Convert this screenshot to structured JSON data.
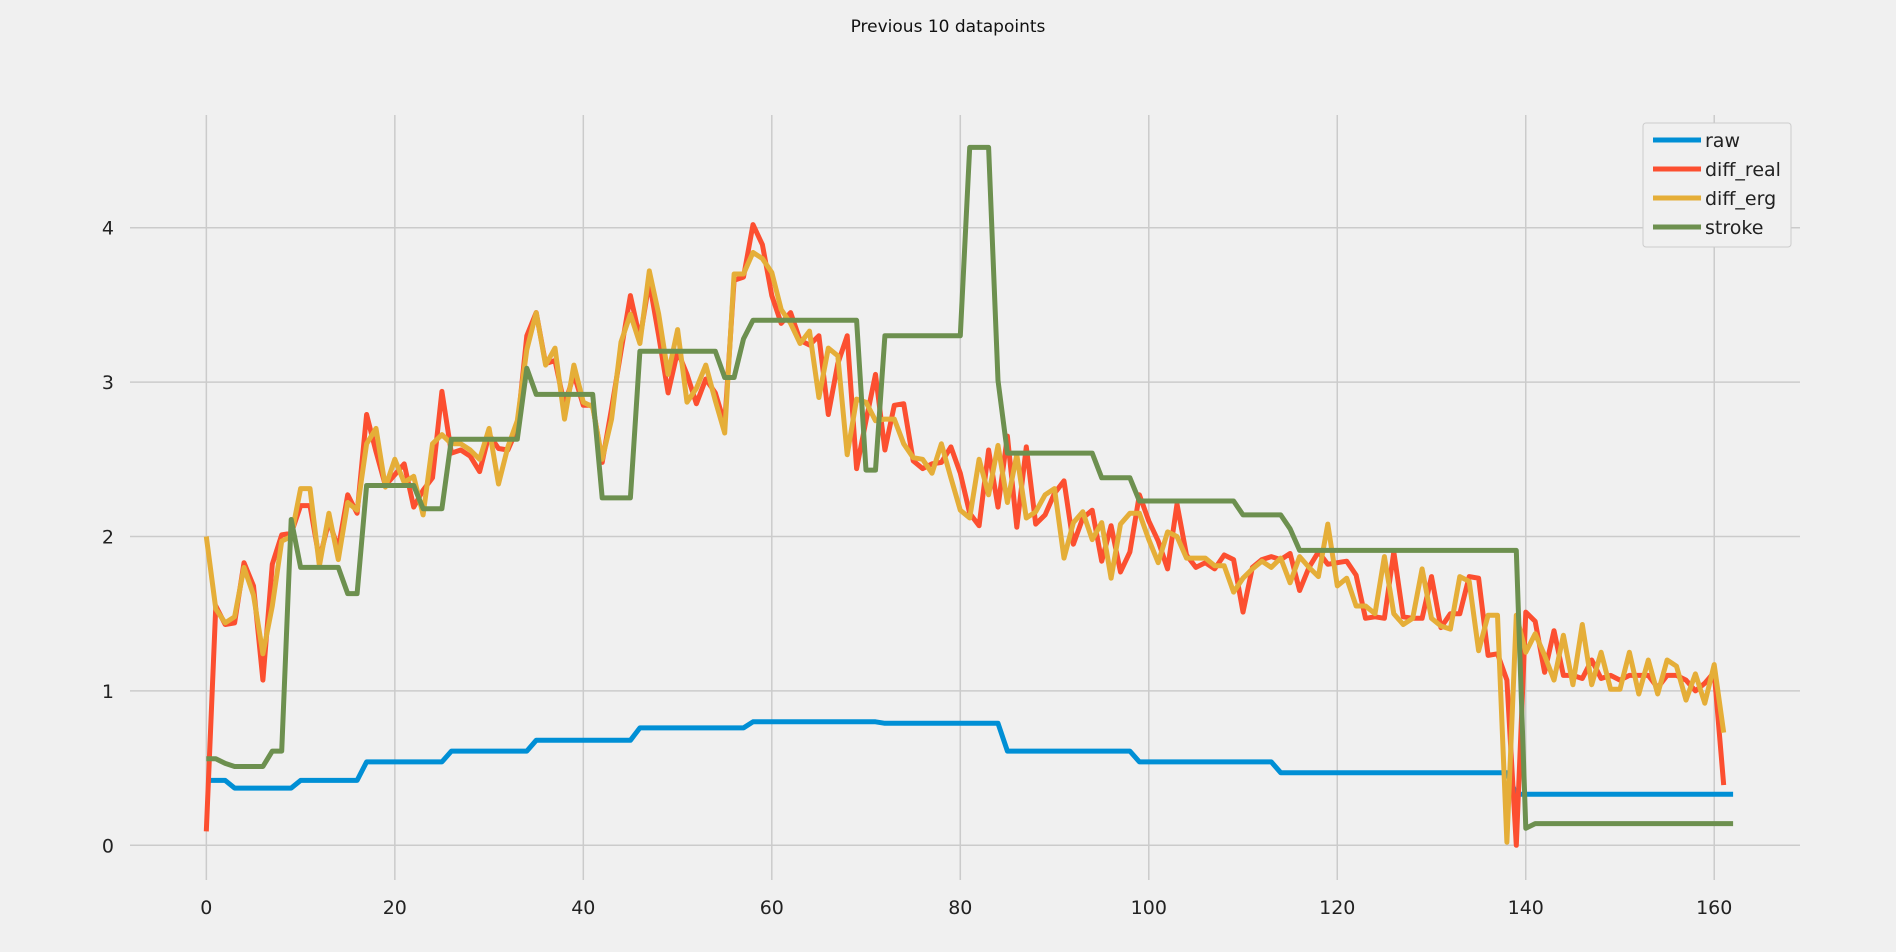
{
  "chart_data": {
    "type": "line",
    "title": "Previous 10 datapoints",
    "xlabel": "",
    "ylabel": "",
    "xlim": [
      -8.1,
      169.1
    ],
    "ylim": [
      -0.225,
      4.73
    ],
    "xticks": [
      0,
      20,
      40,
      60,
      80,
      100,
      120,
      140,
      160
    ],
    "yticks": [
      0,
      1,
      2,
      3,
      4
    ],
    "grid": true,
    "legend_position": "top-right",
    "series": [
      {
        "name": "raw",
        "color": "#008fd5",
        "y": [
          0.42,
          0.42,
          0.42,
          0.37,
          0.37,
          0.37,
          0.37,
          0.37,
          0.37,
          0.37,
          0.42,
          0.42,
          0.42,
          0.42,
          0.42,
          0.42,
          0.42,
          0.54,
          0.54,
          0.54,
          0.54,
          0.54,
          0.54,
          0.54,
          0.54,
          0.54,
          0.61,
          0.61,
          0.61,
          0.61,
          0.61,
          0.61,
          0.61,
          0.61,
          0.61,
          0.68,
          0.68,
          0.68,
          0.68,
          0.68,
          0.68,
          0.68,
          0.68,
          0.68,
          0.68,
          0.68,
          0.76,
          0.76,
          0.76,
          0.76,
          0.76,
          0.76,
          0.76,
          0.76,
          0.76,
          0.76,
          0.76,
          0.76,
          0.8,
          0.8,
          0.8,
          0.8,
          0.8,
          0.8,
          0.8,
          0.8,
          0.8,
          0.8,
          0.8,
          0.8,
          0.8,
          0.8,
          0.79,
          0.79,
          0.79,
          0.79,
          0.79,
          0.79,
          0.79,
          0.79,
          0.79,
          0.79,
          0.79,
          0.79,
          0.79,
          0.61,
          0.61,
          0.61,
          0.61,
          0.61,
          0.61,
          0.61,
          0.61,
          0.61,
          0.61,
          0.61,
          0.61,
          0.61,
          0.61,
          0.54,
          0.54,
          0.54,
          0.54,
          0.54,
          0.54,
          0.54,
          0.54,
          0.54,
          0.54,
          0.54,
          0.54,
          0.54,
          0.54,
          0.54,
          0.47,
          0.47,
          0.47,
          0.47,
          0.47,
          0.47,
          0.47,
          0.47,
          0.47,
          0.47,
          0.47,
          0.47,
          0.47,
          0.47,
          0.47,
          0.47,
          0.47,
          0.47,
          0.47,
          0.47,
          0.47,
          0.47,
          0.47,
          0.47,
          0.47,
          0.33,
          0.33,
          0.33,
          0.33,
          0.33,
          0.33,
          0.33,
          0.33,
          0.33,
          0.33,
          0.33,
          0.33,
          0.33,
          0.33,
          0.33,
          0.33,
          0.33,
          0.33,
          0.33,
          0.33,
          0.33,
          0.33,
          0.33,
          0.33
        ]
      },
      {
        "name": "diff_real",
        "color": "#fc4f30",
        "y": [
          0.09,
          1.55,
          1.43,
          1.44,
          1.83,
          1.68,
          1.07,
          1.82,
          2.01,
          2.02,
          2.2,
          2.2,
          1.85,
          2.1,
          1.92,
          2.27,
          2.15,
          2.79,
          2.55,
          2.33,
          2.4,
          2.47,
          2.19,
          2.3,
          2.38,
          2.94,
          2.54,
          2.56,
          2.52,
          2.42,
          2.66,
          2.57,
          2.56,
          2.7,
          3.3,
          3.45,
          3.12,
          3.14,
          2.85,
          3.05,
          2.85,
          2.85,
          2.48,
          2.83,
          3.2,
          3.56,
          3.28,
          3.65,
          3.3,
          2.93,
          3.2,
          3.05,
          2.86,
          3.02,
          2.93,
          2.73,
          3.66,
          3.68,
          4.02,
          3.89,
          3.56,
          3.38,
          3.45,
          3.27,
          3.24,
          3.3,
          2.79,
          3.12,
          3.3,
          2.44,
          2.75,
          3.05,
          2.56,
          2.85,
          2.86,
          2.49,
          2.44,
          2.47,
          2.48,
          2.58,
          2.41,
          2.15,
          2.07,
          2.56,
          2.19,
          2.65,
          2.06,
          2.58,
          2.08,
          2.14,
          2.28,
          2.36,
          1.95,
          2.12,
          2.17,
          1.84,
          2.07,
          1.77,
          1.9,
          2.27,
          2.1,
          1.97,
          1.79,
          2.21,
          1.88,
          1.8,
          1.83,
          1.79,
          1.88,
          1.85,
          1.51,
          1.8,
          1.85,
          1.87,
          1.85,
          1.89,
          1.65,
          1.8,
          1.9,
          1.82,
          1.83,
          1.84,
          1.75,
          1.47,
          1.48,
          1.47,
          1.9,
          1.48,
          1.47,
          1.47,
          1.74,
          1.41,
          1.5,
          1.5,
          1.74,
          1.73,
          1.23,
          1.24,
          1.07,
          0.0,
          1.51,
          1.45,
          1.12,
          1.39,
          1.1,
          1.1,
          1.08,
          1.2,
          1.08,
          1.1,
          1.07,
          1.1,
          1.1,
          1.1,
          1.02,
          1.1,
          1.1,
          1.07,
          1.0,
          1.05,
          1.12,
          0.39
        ]
      },
      {
        "name": "diff_erg",
        "color": "#e5ae38",
        "y": [
          2.0,
          1.53,
          1.44,
          1.48,
          1.8,
          1.62,
          1.24,
          1.55,
          1.97,
          2.0,
          2.31,
          2.31,
          1.81,
          2.15,
          1.85,
          2.22,
          2.17,
          2.6,
          2.7,
          2.32,
          2.5,
          2.35,
          2.39,
          2.14,
          2.6,
          2.66,
          2.6,
          2.6,
          2.56,
          2.5,
          2.7,
          2.34,
          2.58,
          2.75,
          3.21,
          3.45,
          3.11,
          3.22,
          2.76,
          3.11,
          2.87,
          2.84,
          2.5,
          2.76,
          3.26,
          3.44,
          3.25,
          3.72,
          3.44,
          3.05,
          3.34,
          2.87,
          2.96,
          3.11,
          2.88,
          2.67,
          3.7,
          3.7,
          3.84,
          3.8,
          3.71,
          3.47,
          3.38,
          3.25,
          3.33,
          2.9,
          3.22,
          3.17,
          2.53,
          2.89,
          2.87,
          2.75,
          2.76,
          2.76,
          2.6,
          2.51,
          2.5,
          2.41,
          2.6,
          2.38,
          2.17,
          2.12,
          2.5,
          2.27,
          2.59,
          2.22,
          2.53,
          2.12,
          2.16,
          2.27,
          2.31,
          1.86,
          2.09,
          2.16,
          1.98,
          2.09,
          1.73,
          2.08,
          2.15,
          2.15,
          1.98,
          1.83,
          2.03,
          2.0,
          1.86,
          1.86,
          1.86,
          1.81,
          1.81,
          1.64,
          1.73,
          1.79,
          1.84,
          1.8,
          1.86,
          1.7,
          1.87,
          1.8,
          1.74,
          2.08,
          1.68,
          1.73,
          1.55,
          1.55,
          1.5,
          1.87,
          1.5,
          1.43,
          1.47,
          1.79,
          1.47,
          1.42,
          1.4,
          1.74,
          1.71,
          1.26,
          1.49,
          1.49,
          0.02,
          1.49,
          1.25,
          1.37,
          1.23,
          1.07,
          1.36,
          1.04,
          1.43,
          1.04,
          1.25,
          1.01,
          1.01,
          1.25,
          0.98,
          1.2,
          0.98,
          1.2,
          1.16,
          0.94,
          1.11,
          0.92,
          1.17,
          0.73
        ]
      },
      {
        "name": "stroke",
        "color": "#6d904f",
        "y": [
          0.56,
          0.56,
          0.53,
          0.51,
          0.51,
          0.51,
          0.51,
          0.61,
          0.61,
          2.11,
          1.8,
          1.8,
          1.8,
          1.8,
          1.8,
          1.63,
          1.63,
          2.33,
          2.33,
          2.33,
          2.33,
          2.33,
          2.33,
          2.18,
          2.18,
          2.18,
          2.63,
          2.63,
          2.63,
          2.63,
          2.63,
          2.63,
          2.63,
          2.63,
          3.09,
          2.92,
          2.92,
          2.92,
          2.92,
          2.92,
          2.92,
          2.92,
          2.25,
          2.25,
          2.25,
          2.25,
          3.2,
          3.2,
          3.2,
          3.2,
          3.2,
          3.2,
          3.2,
          3.2,
          3.2,
          3.03,
          3.03,
          3.28,
          3.4,
          3.4,
          3.4,
          3.4,
          3.4,
          3.4,
          3.4,
          3.4,
          3.4,
          3.4,
          3.4,
          3.4,
          2.43,
          2.43,
          3.3,
          3.3,
          3.3,
          3.3,
          3.3,
          3.3,
          3.3,
          3.3,
          3.3,
          4.52,
          4.52,
          4.52,
          3.01,
          2.54,
          2.54,
          2.54,
          2.54,
          2.54,
          2.54,
          2.54,
          2.54,
          2.54,
          2.54,
          2.38,
          2.38,
          2.38,
          2.38,
          2.23,
          2.23,
          2.23,
          2.23,
          2.23,
          2.23,
          2.23,
          2.23,
          2.23,
          2.23,
          2.23,
          2.14,
          2.14,
          2.14,
          2.14,
          2.14,
          2.05,
          1.91,
          1.91,
          1.91,
          1.91,
          1.91,
          1.91,
          1.91,
          1.91,
          1.91,
          1.91,
          1.91,
          1.91,
          1.91,
          1.91,
          1.91,
          1.91,
          1.91,
          1.91,
          1.91,
          1.91,
          1.91,
          1.91,
          1.91,
          1.91,
          0.11,
          0.14,
          0.14,
          0.14,
          0.14,
          0.14,
          0.14,
          0.14,
          0.14,
          0.14,
          0.14,
          0.14,
          0.14,
          0.14,
          0.14,
          0.14,
          0.14,
          0.14,
          0.14,
          0.14,
          0.14,
          0.14,
          0.14
        ]
      }
    ]
  }
}
